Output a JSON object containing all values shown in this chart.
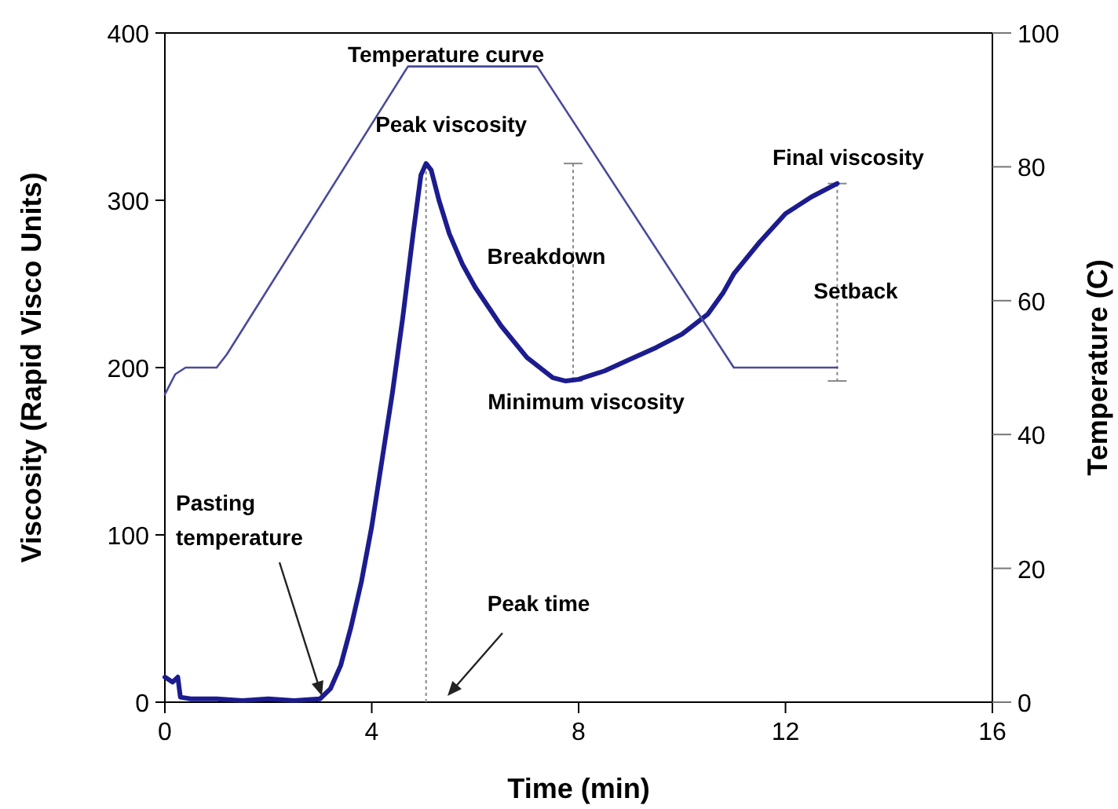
{
  "chart_data": {
    "type": "line",
    "xlabel": "Time (min)",
    "ylabel": "Viscosity (Rapid Visco Units)",
    "y2label": "Temperature (C)",
    "xlim": [
      0,
      16
    ],
    "xticks": [
      0,
      4,
      8,
      12,
      16
    ],
    "ylim": [
      0,
      400
    ],
    "yticks": [
      0,
      100,
      200,
      300,
      400
    ],
    "y2lim": [
      0,
      100
    ],
    "y2ticks": [
      0,
      20,
      40,
      60,
      80,
      100
    ],
    "grid": false,
    "marker": "none",
    "line_style": "solid",
    "series": [
      {
        "color": "#1c1c8f",
        "x": [
          0,
          0.15,
          0.25,
          0.3,
          0.5,
          1,
          1.5,
          2,
          2.5,
          3,
          3.2,
          3.4,
          3.6,
          3.8,
          4,
          4.2,
          4.4,
          4.6,
          4.8,
          4.95,
          5.05,
          5.15,
          5.3,
          5.5,
          5.75,
          6,
          6.5,
          7,
          7.5,
          7.75,
          8,
          8.5,
          9,
          9.5,
          10,
          10.5,
          10.8,
          11,
          11.5,
          12,
          12.5,
          13
        ],
        "values": [
          15,
          12,
          15,
          3,
          2,
          2,
          1,
          2,
          1,
          2,
          8,
          22,
          45,
          72,
          105,
          145,
          185,
          230,
          280,
          315,
          322,
          318,
          300,
          280,
          262,
          248,
          225,
          206,
          194,
          192,
          193,
          198,
          205,
          212,
          220,
          232,
          245,
          256,
          275,
          292,
          302,
          310
        ]
      },
      {
        "name": "Temperature curve",
        "color": "#4a4a9c",
        "axis": "y2",
        "x": [
          0,
          0.2,
          0.4,
          1,
          1.2,
          4.7,
          7.2,
          11,
          13
        ],
        "values": [
          46,
          49,
          50,
          50,
          52,
          95,
          95,
          50,
          50
        ]
      }
    ],
    "ref_lines": [
      {
        "axis": "x",
        "value": 5.05,
        "line_style": "dotted",
        "color": "#888888"
      }
    ],
    "annotations": [
      {
        "text": "Peak viscosity",
        "x": 5.05,
        "y": 322
      },
      "Breakdown",
      {
        "text": "Minimum viscosity",
        "x": 7.75,
        "y": 192
      },
      {
        "text": "Final viscosity",
        "x": 13,
        "y": 310
      },
      "Setback",
      "Pasting temperature",
      "Peak time"
    ]
  }
}
